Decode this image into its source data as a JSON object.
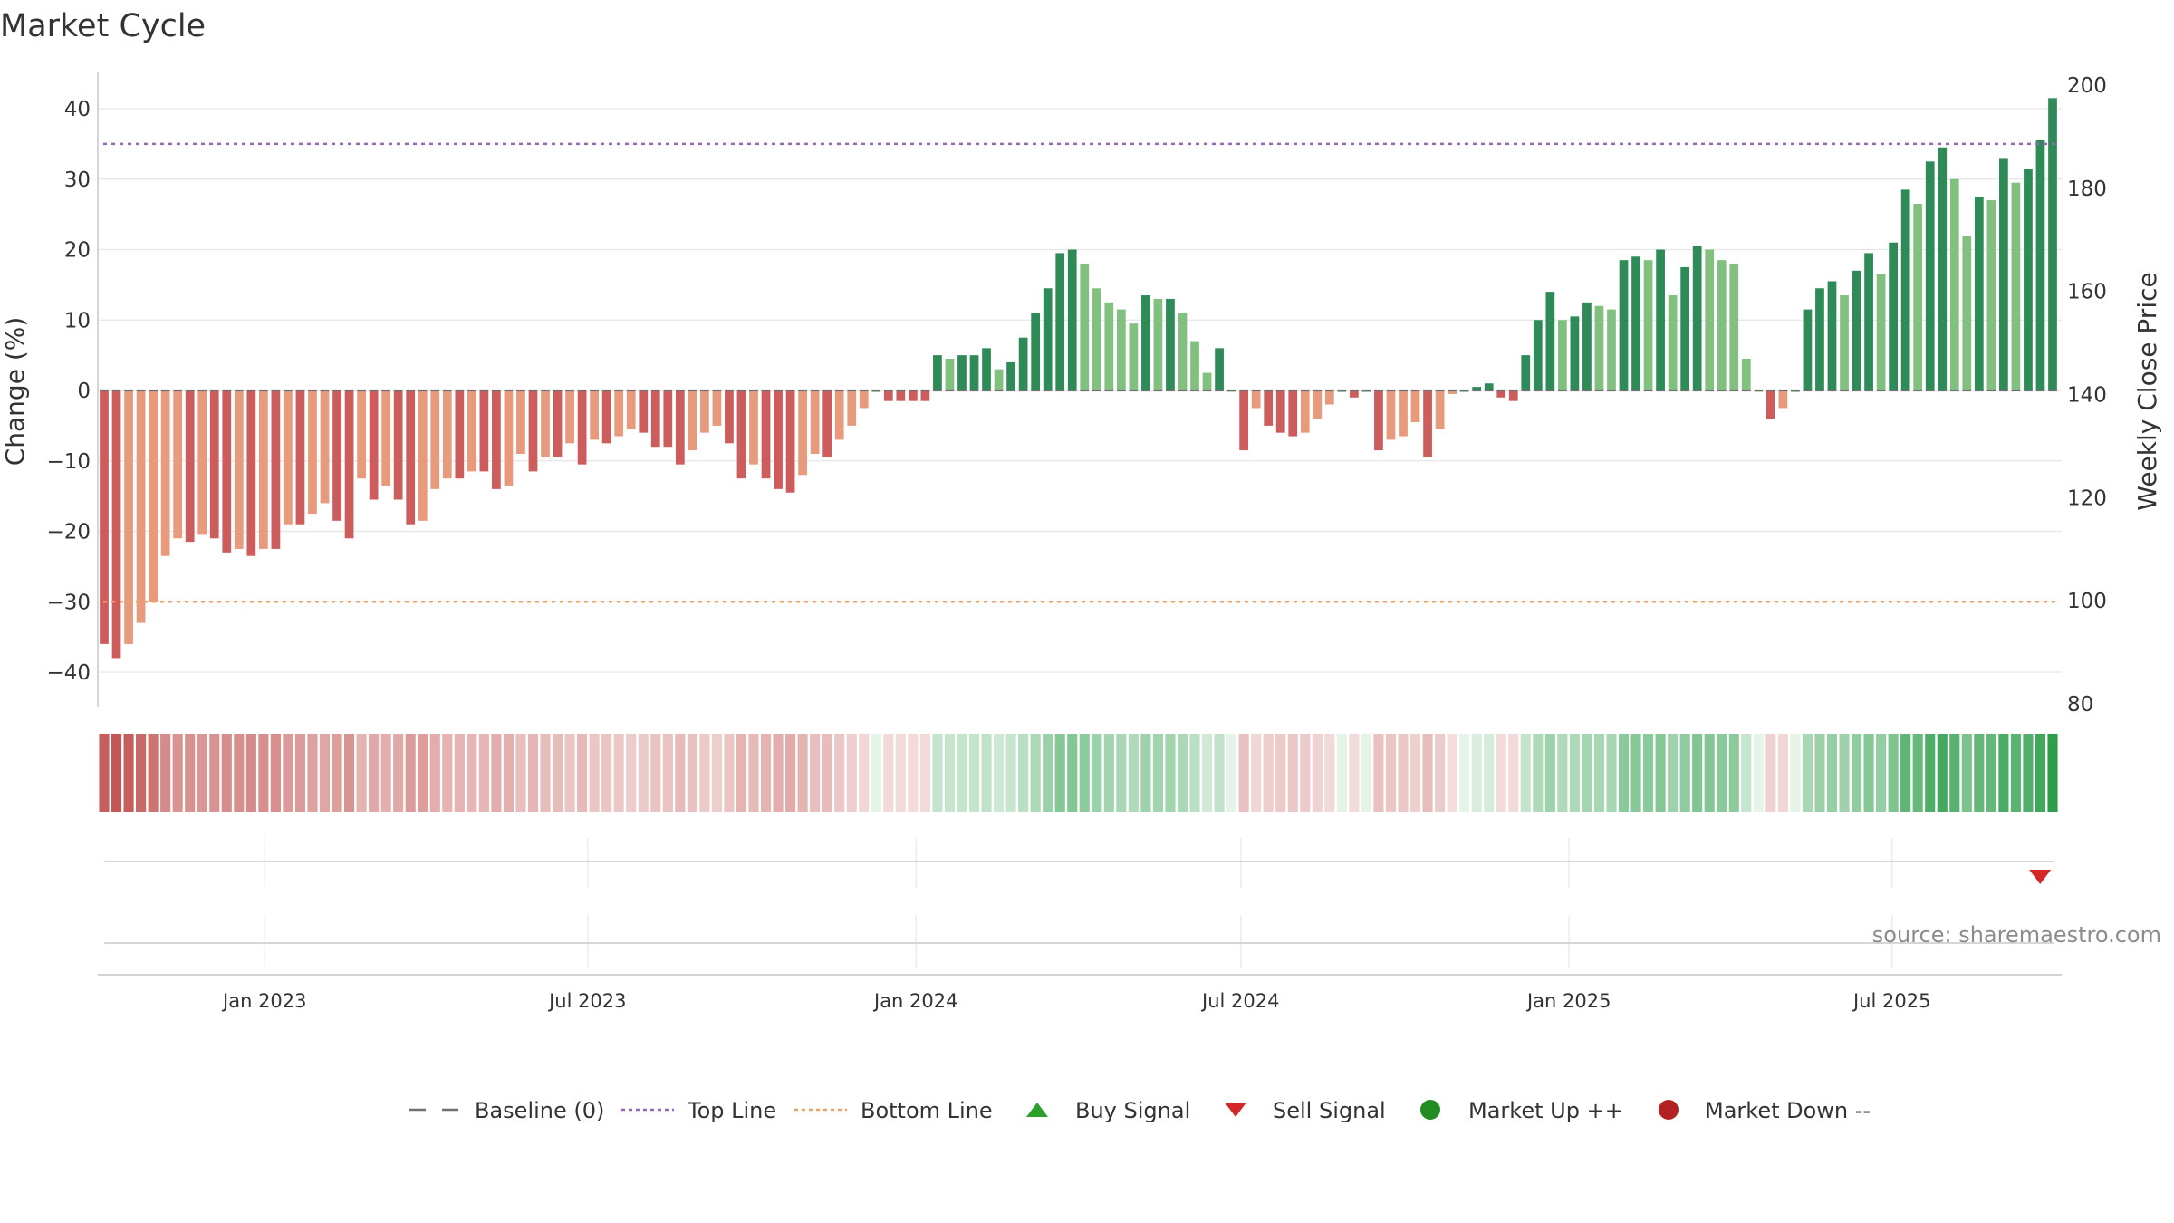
{
  "chart_data": {
    "type": "bar",
    "title": "Market Cycle",
    "ylabel": "Change (%)",
    "y2label": "Weekly Close Price",
    "ylim": [
      -45,
      45
    ],
    "y2lim": [
      80,
      200
    ],
    "y_ticks": [
      40,
      30,
      20,
      10,
      0,
      -10,
      -20,
      -30,
      -40
    ],
    "y_tick_labels": [
      "40",
      "30",
      "20",
      "10",
      "0",
      "−10",
      "−20",
      "−30",
      "−40"
    ],
    "y2_ticks": [
      200,
      180,
      160,
      140,
      120,
      100,
      80
    ],
    "y2_tick_labels": [
      "200",
      "180",
      "160",
      "140",
      "120",
      "100",
      "80"
    ],
    "x_start": "2022-10-03",
    "x_end": "2025-09-29",
    "x_ticks": [
      {
        "date": "2023-01-01",
        "label": "Jan 2023"
      },
      {
        "date": "2023-07-01",
        "label": "Jul 2023"
      },
      {
        "date": "2024-01-01",
        "label": "Jan 2024"
      },
      {
        "date": "2024-07-01",
        "label": "Jul 2024"
      },
      {
        "date": "2025-01-01",
        "label": "Jan 2025"
      },
      {
        "date": "2025-07-01",
        "label": "Jul 2025"
      }
    ],
    "grid": true,
    "legend_position": "bottom-center",
    "top_line": 35,
    "bottom_line": -30,
    "series": [
      {
        "name": "Change (%)",
        "values": [
          -36,
          -38,
          -36,
          -33,
          -30,
          -23.5,
          -21,
          -21.5,
          -20.5,
          -21,
          -23,
          -22.5,
          -23.5,
          -22.5,
          -22.5,
          -19,
          -19,
          -17.5,
          -16,
          -18.5,
          -21,
          -12.5,
          -15.5,
          -13.5,
          -15.5,
          -19,
          -18.5,
          -14,
          -12.5,
          -12.5,
          -11.5,
          -11.5,
          -14,
          -13.5,
          -9,
          -11.5,
          -9.5,
          -9.5,
          -7.5,
          -10.5,
          -7,
          -7.5,
          -6.5,
          -5.5,
          -6,
          -8,
          -8,
          -10.5,
          -8.5,
          -6,
          -5,
          -7.5,
          -12.5,
          -10.5,
          -12.5,
          -14,
          -14.5,
          -12,
          -9,
          -9.5,
          -7,
          -5,
          -2.5,
          0,
          -1.5,
          -1.5,
          -1.5,
          -1.5,
          5,
          4.5,
          5,
          5,
          6,
          3,
          4,
          7.5,
          11,
          14.5,
          19.5,
          20,
          18,
          14.5,
          12.5,
          11.5,
          9.5,
          13.5,
          13,
          13,
          11,
          7,
          2.5,
          6,
          0,
          -8.5,
          -2.5,
          -5,
          -6,
          -6.5,
          -6,
          -4,
          -2,
          0,
          -1,
          0,
          -8.5,
          -7,
          -6.5,
          -4.5,
          -9.5,
          -5.5,
          -0.5,
          0,
          0.5,
          1,
          -1,
          -1.5,
          5,
          10,
          14,
          10,
          10.5,
          12.5,
          12,
          11.5,
          18.5,
          19,
          18.5,
          20,
          13.5,
          17.5,
          20.5,
          20,
          18.5,
          18,
          4.5,
          0,
          -4,
          -2.5,
          0,
          11.5,
          14.5,
          15.5,
          13.5,
          17,
          19.5,
          16.5,
          21,
          28.5,
          26.5,
          32.5,
          34.5,
          30,
          22,
          27.5,
          27,
          33,
          29.5,
          31.5,
          35.5,
          41.5
        ]
      }
    ],
    "signals": [
      {
        "type": "sell",
        "date": "2025-09-22"
      }
    ],
    "legend": [
      {
        "key": "baseline",
        "label": "Baseline (0)",
        "color": "#707070"
      },
      {
        "key": "top",
        "label": "Top Line",
        "color": "#9467bd"
      },
      {
        "key": "bottom",
        "label": "Bottom Line",
        "color": "#f0a060"
      },
      {
        "key": "buy",
        "label": "Buy Signal",
        "color": "#2ca02c"
      },
      {
        "key": "sell",
        "label": "Sell Signal",
        "color": "#d62728"
      },
      {
        "key": "mup",
        "label": "Market Up ++",
        "color": "#228b22"
      },
      {
        "key": "mdown",
        "label": "Market Down --",
        "color": "#b22222"
      }
    ],
    "colors": {
      "bar_up_strong": "#2e8b57",
      "bar_up_light": "#82c080",
      "bar_down_strong": "#cd5c5c",
      "bar_down_light": "#e89a7c",
      "heat_up": "#2e9e4a",
      "heat_down": "#c0504d",
      "top_line": "#9467bd",
      "bottom_line": "#f0a060",
      "baseline": "#707070",
      "grid": "#e6e6e6"
    }
  },
  "source": "source: sharemaestro.com"
}
